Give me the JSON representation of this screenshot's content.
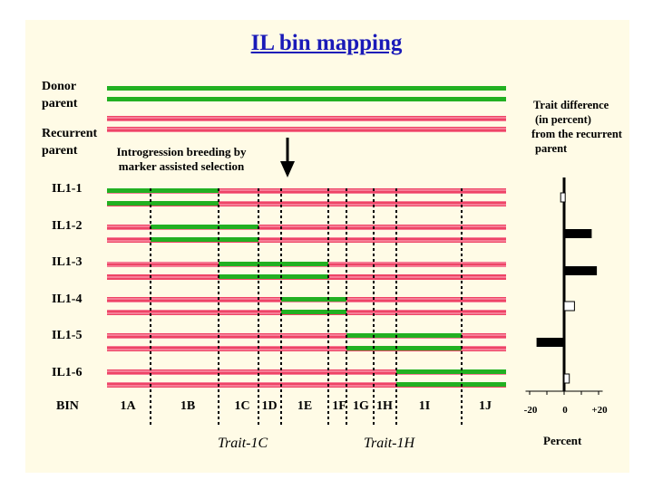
{
  "title": "IL bin mapping",
  "parents": {
    "donor_label": [
      "Donor",
      "parent"
    ],
    "recurrent_label": [
      "Recurrent",
      "parent"
    ]
  },
  "introgression_note": [
    "Introgression breeding by",
    "marker assisted selection"
  ],
  "lines": [
    {
      "name": "IL1-1",
      "segment_bins": [
        "1A",
        "1B"
      ]
    },
    {
      "name": "IL1-2",
      "segment_bins": [
        "1B",
        "1C"
      ]
    },
    {
      "name": "IL1-3",
      "segment_bins": [
        "1C",
        "1D",
        "1E"
      ]
    },
    {
      "name": "IL1-4",
      "segment_bins": [
        "1E",
        "1F"
      ]
    },
    {
      "name": "IL1-5",
      "segment_bins": [
        "1G",
        "1H",
        "1I"
      ]
    },
    {
      "name": "IL1-6",
      "segment_bins": [
        "1I",
        "1J"
      ]
    }
  ],
  "bin_header": "BIN",
  "bins": [
    "1A",
    "1B",
    "1C",
    "1D",
    "1E",
    "1F",
    "1G",
    "1H",
    "1I",
    "1J"
  ],
  "traits": [
    "Trait-1C",
    "Trait-1H"
  ],
  "trait_panel": {
    "title": [
      "Trait difference",
      "(in percent)",
      "from the recurrent",
      "parent"
    ],
    "ticks": [
      "-20",
      "0",
      "+20"
    ],
    "xlabel": "Percent",
    "xlim": [
      -25,
      25
    ],
    "bars": [
      {
        "line": "IL1-1",
        "value": -2,
        "fill": "open"
      },
      {
        "line": "IL1-2",
        "value": 16,
        "fill": "solid"
      },
      {
        "line": "IL1-3",
        "value": 19,
        "fill": "solid"
      },
      {
        "line": "IL1-4",
        "value": 6,
        "fill": "open"
      },
      {
        "line": "IL1-5",
        "value": -16,
        "fill": "solid"
      },
      {
        "line": "IL1-6",
        "value": 3,
        "fill": "open"
      }
    ]
  },
  "colors": {
    "donor": "#22b022",
    "recurrent": "#ee4466",
    "background": "#fffbe6",
    "title": "#1a1ab8"
  }
}
